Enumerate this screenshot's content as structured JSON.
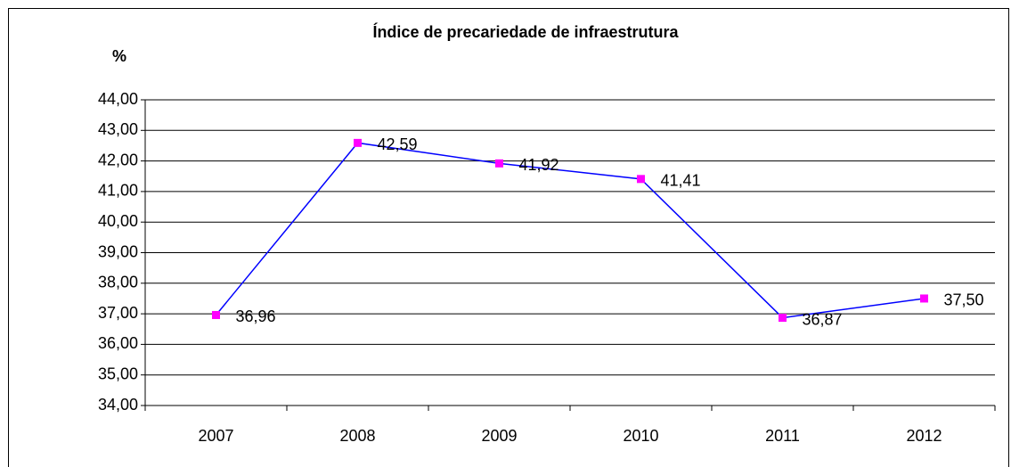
{
  "chart_data": {
    "type": "line",
    "title": "Índice de precariedade de infraestrutura",
    "y_label": "%",
    "categories": [
      "2007",
      "2008",
      "2009",
      "2010",
      "2011",
      "2012"
    ],
    "series": [
      {
        "name": "Índice",
        "color": "#0000ff",
        "marker_color": "#ff00ff",
        "values": [
          36.96,
          42.59,
          41.92,
          41.41,
          36.87,
          37.5
        ],
        "value_labels": [
          "36,96",
          "42,59",
          "41,92",
          "41,41",
          "36,87",
          "37,50"
        ]
      }
    ],
    "ylim": [
      34,
      44
    ],
    "yticks": [
      {
        "value": 34,
        "label": "34,00"
      },
      {
        "value": 35,
        "label": "35,00"
      },
      {
        "value": 36,
        "label": "36,00"
      },
      {
        "value": 37,
        "label": "37,00"
      },
      {
        "value": 38,
        "label": "38,00"
      },
      {
        "value": 39,
        "label": "39,00"
      },
      {
        "value": 40,
        "label": "40,00"
      },
      {
        "value": 41,
        "label": "41,00"
      },
      {
        "value": 42,
        "label": "42,00"
      },
      {
        "value": 43,
        "label": "43,00"
      },
      {
        "value": 44,
        "label": "44,00"
      }
    ],
    "grid": true
  }
}
